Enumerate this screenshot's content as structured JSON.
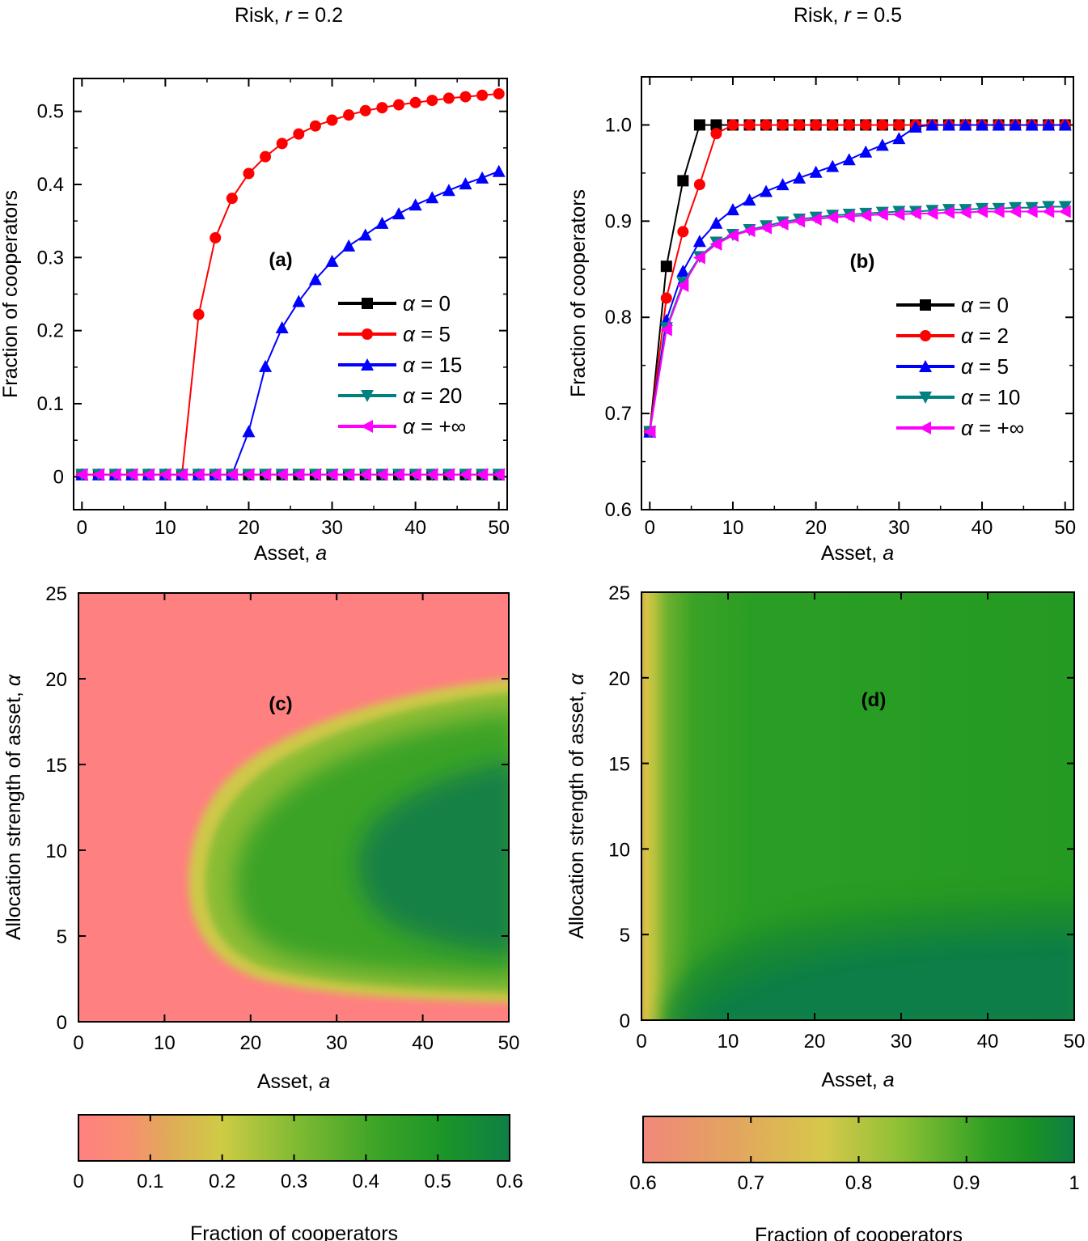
{
  "titles": {
    "left": "Risk, r = 0.2",
    "right": "Risk, r = 0.5"
  },
  "chart_data": [
    {
      "id": "a",
      "type": "line",
      "panel_label": "(a)",
      "xlabel": "Asset, a",
      "ylabel": "Fraction of cooperators",
      "xlim": [
        -1,
        51
      ],
      "ylim": [
        -0.045,
        0.545
      ],
      "xticks": [
        0,
        10,
        20,
        30,
        40,
        50
      ],
      "yticks": [
        0,
        0.1,
        0.2,
        0.3,
        0.4,
        0.5
      ],
      "ytick_labels": [
        "0",
        "0.1",
        "0.2",
        "0.3",
        "0.4",
        "0.5"
      ],
      "legend_position": "right",
      "x": [
        0,
        2,
        4,
        6,
        8,
        10,
        12,
        14,
        16,
        18,
        20,
        22,
        24,
        26,
        28,
        30,
        32,
        34,
        36,
        38,
        40,
        42,
        44,
        46,
        48,
        50
      ],
      "series": [
        {
          "name": "α = 0",
          "color": "#000000",
          "marker": "square",
          "values": [
            0.003,
            0.003,
            0.003,
            0.003,
            0.003,
            0.003,
            0.003,
            0.003,
            0.003,
            0.003,
            0.003,
            0.003,
            0.003,
            0.003,
            0.003,
            0.003,
            0.003,
            0.003,
            0.003,
            0.003,
            0.003,
            0.003,
            0.003,
            0.003,
            0.003,
            0.003
          ]
        },
        {
          "name": "α = 5",
          "color": "#ff0000",
          "marker": "circle",
          "values": [
            0.003,
            0.003,
            0.003,
            0.003,
            0.003,
            0.003,
            0.003,
            0.222,
            0.327,
            0.381,
            0.415,
            0.438,
            0.456,
            0.469,
            0.48,
            0.488,
            0.495,
            0.501,
            0.505,
            0.509,
            0.512,
            0.515,
            0.518,
            0.52,
            0.522,
            0.524
          ]
        },
        {
          "name": "α = 15",
          "color": "#0000ff",
          "marker": "triangle-up",
          "values": [
            0.003,
            0.003,
            0.003,
            0.003,
            0.003,
            0.003,
            0.003,
            0.003,
            0.003,
            0.003,
            0.062,
            0.151,
            0.204,
            0.24,
            0.27,
            0.295,
            0.316,
            0.331,
            0.347,
            0.36,
            0.372,
            0.382,
            0.392,
            0.401,
            0.409,
            0.418
          ]
        },
        {
          "name": "α = 20",
          "color": "#008080",
          "marker": "triangle-down",
          "values": [
            0.003,
            0.003,
            0.003,
            0.003,
            0.003,
            0.003,
            0.003,
            0.003,
            0.003,
            0.003,
            0.003,
            0.003,
            0.003,
            0.003,
            0.003,
            0.003,
            0.003,
            0.003,
            0.003,
            0.003,
            0.003,
            0.003,
            0.003,
            0.003,
            0.003,
            0.003
          ]
        },
        {
          "name": "α = +∞",
          "color": "#ff00ff",
          "marker": "triangle-left",
          "values": [
            0.003,
            0.003,
            0.003,
            0.003,
            0.003,
            0.003,
            0.003,
            0.003,
            0.003,
            0.003,
            0.003,
            0.003,
            0.003,
            0.003,
            0.003,
            0.003,
            0.003,
            0.003,
            0.003,
            0.003,
            0.003,
            0.003,
            0.003,
            0.003,
            0.003,
            0.003
          ]
        }
      ]
    },
    {
      "id": "b",
      "type": "line",
      "panel_label": "(b)",
      "xlabel": "Asset, a",
      "ylabel": "Fraction of cooperators",
      "xlim": [
        -1,
        51
      ],
      "ylim": [
        0.6,
        1.05
      ],
      "xticks": [
        0,
        10,
        20,
        30,
        40,
        50
      ],
      "yticks": [
        0.6,
        0.7,
        0.8,
        0.9,
        1.0
      ],
      "ytick_labels": [
        "0.6",
        "0.7",
        "0.8",
        "0.9",
        "1.0"
      ],
      "legend_position": "right",
      "x": [
        0,
        2,
        4,
        6,
        8,
        10,
        12,
        14,
        16,
        18,
        20,
        22,
        24,
        26,
        28,
        30,
        32,
        34,
        36,
        38,
        40,
        42,
        44,
        46,
        48,
        50
      ],
      "series": [
        {
          "name": "α = 0",
          "color": "#000000",
          "marker": "square",
          "values": [
            0.681,
            0.853,
            0.942,
            1.0,
            1.0,
            1.0,
            1.0,
            1.0,
            1.0,
            1.0,
            1.0,
            1.0,
            1.0,
            1.0,
            1.0,
            1.0,
            1.0,
            1.0,
            1.0,
            1.0,
            1.0,
            1.0,
            1.0,
            1.0,
            1.0,
            1.0
          ]
        },
        {
          "name": "α = 2",
          "color": "#ff0000",
          "marker": "circle",
          "values": [
            0.681,
            0.82,
            0.889,
            0.938,
            0.991,
            1.0,
            1.0,
            1.0,
            1.0,
            1.0,
            1.0,
            1.0,
            1.0,
            1.0,
            1.0,
            1.0,
            1.0,
            1.0,
            1.0,
            1.0,
            1.0,
            1.0,
            1.0,
            1.0,
            1.0,
            1.0
          ]
        },
        {
          "name": "α = 5",
          "color": "#0000ff",
          "marker": "triangle-up",
          "values": [
            0.681,
            0.797,
            0.848,
            0.879,
            0.898,
            0.912,
            0.922,
            0.931,
            0.938,
            0.945,
            0.951,
            0.957,
            0.964,
            0.972,
            0.979,
            0.986,
            0.998,
            1.0,
            1.0,
            1.0,
            1.0,
            1.0,
            1.0,
            1.0,
            1.0,
            1.0
          ]
        },
        {
          "name": "α = 10",
          "color": "#008080",
          "marker": "triangle-down",
          "values": [
            0.681,
            0.789,
            0.836,
            0.863,
            0.878,
            0.886,
            0.891,
            0.895,
            0.899,
            0.902,
            0.904,
            0.906,
            0.907,
            0.908,
            0.909,
            0.91,
            0.91,
            0.911,
            0.912,
            0.912,
            0.913,
            0.913,
            0.914,
            0.914,
            0.915,
            0.915
          ]
        },
        {
          "name": "α = +∞",
          "color": "#ff00ff",
          "marker": "triangle-left",
          "values": [
            0.681,
            0.787,
            0.833,
            0.862,
            0.876,
            0.885,
            0.89,
            0.893,
            0.897,
            0.9,
            0.902,
            0.904,
            0.905,
            0.906,
            0.907,
            0.907,
            0.908,
            0.908,
            0.909,
            0.909,
            0.91,
            0.91,
            0.91,
            0.91,
            0.91,
            0.91
          ]
        }
      ]
    },
    {
      "id": "c",
      "type": "heatmap",
      "panel_label": "(c)",
      "xlabel": "Asset, a",
      "ylabel": "Allocation strength of asset, α",
      "xlim": [
        0,
        50
      ],
      "ylim": [
        0,
        25
      ],
      "xticks": [
        0,
        10,
        20,
        30,
        40,
        50
      ],
      "yticks": [
        0,
        5,
        10,
        15,
        20,
        25
      ],
      "colorbar": {
        "label": "Fraction of cooperators",
        "range": [
          0,
          0.6
        ],
        "ticks": [
          0,
          0.1,
          0.2,
          0.3,
          0.4,
          0.5,
          0.6
        ],
        "tick_labels": [
          "0",
          "0.1",
          "0.2",
          "0.3",
          "0.4",
          "0.5",
          "0.6"
        ],
        "colors": [
          "#ff8080",
          "#eda060",
          "#d8c84a",
          "#9bc23a",
          "#55a82a",
          "#1a9a22",
          "#0f7e46"
        ]
      },
      "description_contours": "cooperation region bounded by a parabola-like front with tip near a=13, alpha=6"
    },
    {
      "id": "d",
      "type": "heatmap",
      "panel_label": "(d)",
      "xlabel": "Asset, a",
      "ylabel": "Allocation strength of asset, α",
      "xlim": [
        0,
        50
      ],
      "ylim": [
        0,
        25
      ],
      "xticks": [
        0,
        10,
        20,
        30,
        40,
        50
      ],
      "yticks": [
        0,
        5,
        10,
        15,
        20,
        25
      ],
      "colorbar": {
        "label": "Fraction of cooperators",
        "range": [
          0.6,
          1
        ],
        "ticks": [
          0.6,
          0.7,
          0.8,
          0.9,
          1
        ],
        "tick_labels": [
          "0.6",
          "0.7",
          "0.8",
          "0.9",
          "1"
        ],
        "colors": [
          "#f0887a",
          "#e0a860",
          "#d0c845",
          "#8cc035",
          "#33a025",
          "#1a9a22",
          "#0f7e46"
        ]
      }
    }
  ]
}
